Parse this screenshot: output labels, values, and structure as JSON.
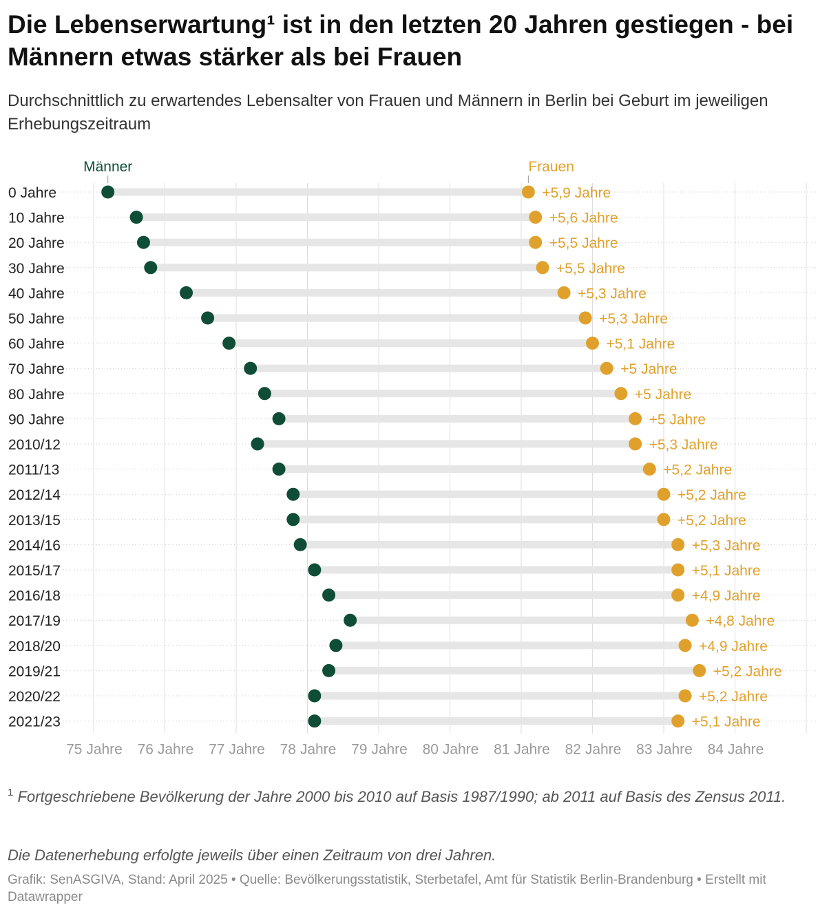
{
  "title": "Die Lebenserwartung¹ ist in den letzten 20 Jahren gestiegen - bei Männern etwas stärker als bei Frauen",
  "subtitle": "Durchschnittlich zu erwartendes Lebensalter von Frauen und Männern in Berlin bei Geburt im jeweiligen Erhebungszeitraum",
  "footnote_marker": "1",
  "footnote_text": "Fortgeschriebene Bevölkerung der Jahre 2000 bis 2010 auf Basis 1987/1990; ab 2011 auf Basis des Zensus 2011.",
  "note": "Die Datenerhebung erfolgte jeweils über einen Zeitraum von drei Jahren.",
  "source": "Grafik: SenASGIVA, Stand: April 2025 • Quelle: Bevölkerungsstatistik, Sterbetafel, Amt für Statistik Berlin-Brandenburg • Erstellt mit Datawrapper",
  "colors": {
    "men": "#0f4d36",
    "women": "#e0a12c",
    "track": "#e6e6e6",
    "grid": "#dddddd",
    "axis_text": "#9a9a9a",
    "row_label": "#222222"
  },
  "chart_data": {
    "type": "dot-range",
    "series": [
      {
        "name": "Männer",
        "color": "#0f4d36"
      },
      {
        "name": "Frauen",
        "color": "#e0a12c"
      }
    ],
    "categories": [
      "0 Jahre",
      "10 Jahre",
      "20 Jahre",
      "30 Jahre",
      "40 Jahre",
      "50 Jahre",
      "60 Jahre",
      "70 Jahre",
      "80 Jahre",
      "90 Jahre",
      "2010/12",
      "2011/13",
      "2012/14",
      "2013/15",
      "2014/16",
      "2015/17",
      "2016/18",
      "2017/19",
      "2018/20",
      "2019/21",
      "2020/22",
      "2021/23"
    ],
    "men": [
      75.2,
      75.6,
      75.7,
      75.8,
      76.3,
      76.6,
      76.9,
      77.2,
      77.4,
      77.6,
      77.3,
      77.6,
      77.8,
      77.8,
      77.9,
      78.1,
      78.3,
      78.6,
      78.4,
      78.3,
      78.1,
      78.1
    ],
    "women": [
      81.1,
      81.2,
      81.2,
      81.3,
      81.6,
      81.9,
      82.0,
      82.2,
      82.4,
      82.6,
      82.6,
      82.8,
      83.0,
      83.0,
      83.2,
      83.2,
      83.2,
      83.4,
      83.3,
      83.5,
      83.3,
      83.2
    ],
    "diff_labels": [
      "+5,9 Jahre",
      "+5,6 Jahre",
      "+5,5 Jahre",
      "+5,5 Jahre",
      "+5,3 Jahre",
      "+5,3 Jahre",
      "+5,1 Jahre",
      "+5 Jahre",
      "+5 Jahre",
      "+5 Jahre",
      "+5,3 Jahre",
      "+5,2 Jahre",
      "+5,2 Jahre",
      "+5,2 Jahre",
      "+5,3 Jahre",
      "+5,1 Jahre",
      "+4,9 Jahre",
      "+4,8 Jahre",
      "+4,9 Jahre",
      "+5,2 Jahre",
      "+5,2 Jahre",
      "+5,1 Jahre"
    ],
    "x_ticks": [
      75,
      76,
      77,
      78,
      79,
      80,
      81,
      82,
      83,
      84
    ],
    "x_tick_labels": [
      "75 Jahre",
      "76 Jahre",
      "77 Jahre",
      "78 Jahre",
      "79 Jahre",
      "80 Jahre",
      "81 Jahre",
      "82 Jahre",
      "83 Jahre",
      "84 Jahre"
    ],
    "xlim": [
      74.9,
      85.0
    ],
    "series_labels": {
      "men": "Männer",
      "women": "Frauen"
    }
  }
}
